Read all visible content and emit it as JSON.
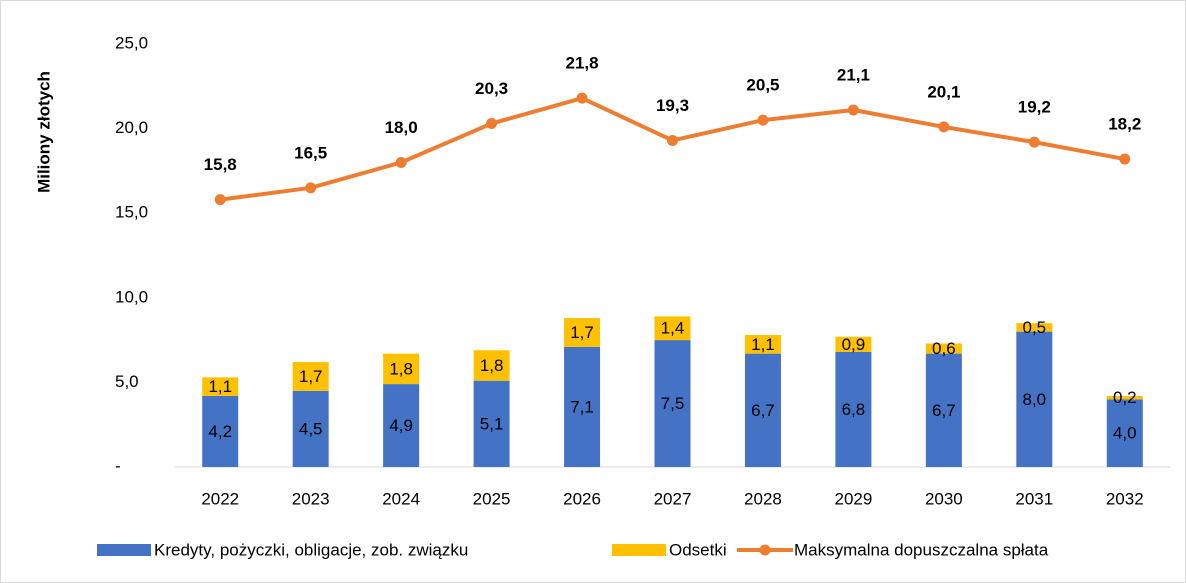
{
  "chart_data": {
    "type": "combo",
    "y_axis_label": "Miliony złotych",
    "categories": [
      "2022",
      "2023",
      "2024",
      "2025",
      "2026",
      "2027",
      "2028",
      "2029",
      "2030",
      "2031",
      "2032"
    ],
    "ylim": [
      0,
      25
    ],
    "yticks": [
      {
        "value": 0,
        "label": "-"
      },
      {
        "value": 5,
        "label": "5,0"
      },
      {
        "value": 10,
        "label": "10,0"
      },
      {
        "value": 15,
        "label": "15,0"
      },
      {
        "value": 20,
        "label": "20,0"
      },
      {
        "value": 25,
        "label": "25,0"
      }
    ],
    "series": [
      {
        "name": "Kredyty, pożyczki, obligacje, zob. związku",
        "type": "bar",
        "color": "#4472c4",
        "values": [
          4.2,
          4.5,
          4.9,
          5.1,
          7.1,
          7.5,
          6.7,
          6.8,
          6.7,
          8.0,
          4.0
        ],
        "value_labels": [
          "4,2",
          "4,5",
          "4,9",
          "5,1",
          "7,1",
          "7,5",
          "6,7",
          "6,8",
          "6,7",
          "8,0",
          "4,0"
        ]
      },
      {
        "name": "Odsetki",
        "type": "bar",
        "color": "#ffc000",
        "values": [
          1.1,
          1.7,
          1.8,
          1.8,
          1.7,
          1.4,
          1.1,
          0.9,
          0.6,
          0.5,
          0.2
        ],
        "value_labels": [
          "1,1",
          "1,7",
          "1,8",
          "1,8",
          "1,7",
          "1,4",
          "1,1",
          "0,9",
          "0,6",
          "0,5",
          "0,2"
        ]
      },
      {
        "name": "Maksymalna dopuszczalna spłata",
        "type": "line",
        "color": "#ed7d31",
        "values": [
          15.8,
          16.5,
          18.0,
          20.3,
          21.8,
          19.3,
          20.5,
          21.1,
          20.1,
          19.2,
          18.2
        ],
        "value_labels": [
          "15,8",
          "16,5",
          "18,0",
          "20,3",
          "21,8",
          "19,3",
          "20,5",
          "21,1",
          "20,1",
          "19,2",
          "18,2"
        ]
      }
    ],
    "stacked": true,
    "legend": "bottom"
  }
}
